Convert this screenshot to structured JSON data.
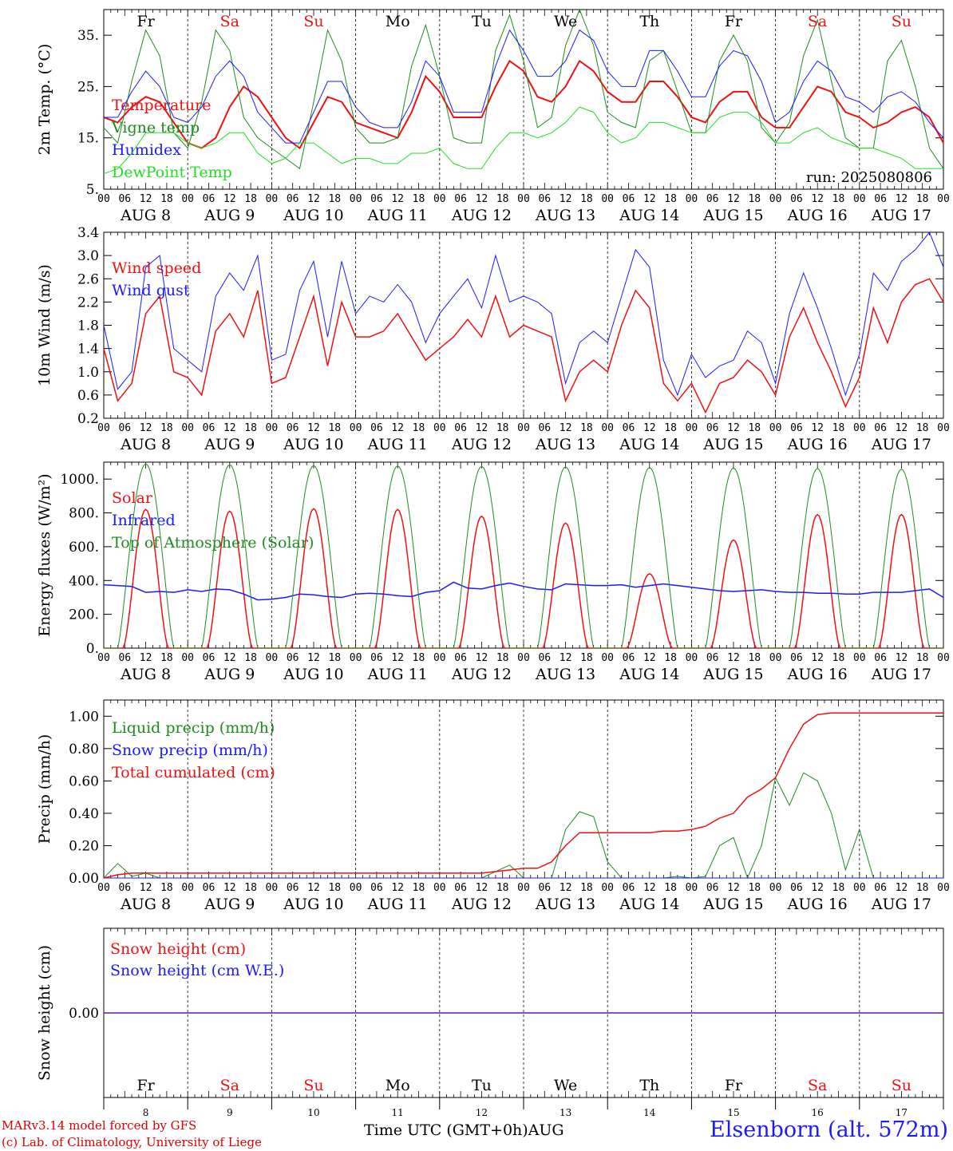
{
  "colors": {
    "red": "#ee1111",
    "green": "#1f8a1f",
    "blue": "#1a1aff",
    "lightgreen": "#22dd22",
    "black": "#000000"
  },
  "days": [
    {
      "abbr": "Fr",
      "date": "AUG  8",
      "num": "8",
      "color": "#000000"
    },
    {
      "abbr": "Sa",
      "date": "AUG  9",
      "num": "9",
      "color": "#ee1111"
    },
    {
      "abbr": "Su",
      "date": "AUG 10",
      "num": "10",
      "color": "#ee1111"
    },
    {
      "abbr": "Mo",
      "date": "AUG 11",
      "num": "11",
      "color": "#000000"
    },
    {
      "abbr": "Tu",
      "date": "AUG 12",
      "num": "12",
      "color": "#000000"
    },
    {
      "abbr": "We",
      "date": "AUG 13",
      "num": "13",
      "color": "#000000"
    },
    {
      "abbr": "Th",
      "date": "AUG 14",
      "num": "14",
      "color": "#000000"
    },
    {
      "abbr": "Fr",
      "date": "AUG 15",
      "num": "15",
      "color": "#000000"
    },
    {
      "abbr": "Sa",
      "date": "AUG 16",
      "num": "16",
      "color": "#ee1111"
    },
    {
      "abbr": "Su",
      "date": "AUG 17",
      "num": "17",
      "color": "#ee1111"
    }
  ],
  "hour_labels": [
    "00",
    "06",
    "12",
    "18"
  ],
  "end_hour_label": "00",
  "footer": {
    "model": "MARv3.14 model forced by GFS",
    "lab": "(c) Lab. of Climatology, University of Liege",
    "axis_title": "Time UTC (GMT+0h)AUG",
    "station": "Elsenborn (alt. 572m)"
  },
  "chart_data": [
    {
      "id": "temp",
      "type": "line",
      "ylabel": "2m Temp. (°C)",
      "ylim": [
        5,
        40
      ],
      "yticks": [
        5,
        15,
        25,
        35
      ],
      "ytick_labels": [
        "5.",
        "15.",
        "25.",
        "35."
      ],
      "note": "run: 2025080806",
      "series": [
        {
          "name": "Temperature",
          "color": "#ee1111",
          "width": 2,
          "values": [
            19,
            18,
            21,
            23,
            22,
            18,
            14,
            13,
            15,
            21,
            25,
            23,
            19,
            15,
            13,
            18,
            23,
            22,
            18,
            17,
            16,
            15,
            20,
            27,
            24,
            19,
            19,
            19,
            25,
            30,
            28,
            23,
            22,
            25,
            30,
            28,
            24,
            22,
            22,
            26,
            26,
            23,
            19,
            18,
            22,
            24,
            24,
            19,
            17,
            17,
            21,
            25,
            24,
            20,
            19,
            17,
            18,
            20,
            21,
            19,
            14
          ]
        },
        {
          "name": "Vigne temp",
          "color": "#1f8a1f",
          "width": 1,
          "values": [
            17,
            14,
            26,
            36,
            31,
            16,
            13,
            22,
            36,
            32,
            19,
            15,
            13,
            11,
            9,
            22,
            36,
            30,
            17,
            14,
            14,
            15,
            29,
            37,
            27,
            15,
            14,
            14,
            32,
            39,
            30,
            17,
            19,
            33,
            40,
            33,
            20,
            18,
            17,
            30,
            32,
            24,
            16,
            16,
            30,
            35,
            30,
            17,
            14,
            18,
            31,
            38,
            26,
            15,
            13,
            13,
            30,
            34,
            25,
            13,
            9
          ]
        },
        {
          "name": "Humidex",
          "color": "#1a1aff",
          "width": 1,
          "values": [
            19,
            19,
            24,
            28,
            25,
            19,
            18,
            21,
            27,
            30,
            27,
            20,
            17,
            14,
            14,
            20,
            26,
            26,
            21,
            18,
            17,
            17,
            22,
            30,
            27,
            20,
            20,
            20,
            29,
            36,
            32,
            27,
            27,
            30,
            36,
            34,
            28,
            25,
            25,
            32,
            32,
            28,
            23,
            23,
            29,
            32,
            31,
            26,
            18,
            20,
            26,
            30,
            28,
            23,
            22,
            20,
            23,
            24,
            22,
            18,
            15
          ]
        },
        {
          "name": "DewPoint Temp",
          "color": "#22dd22",
          "width": 1,
          "values": [
            8,
            9,
            12,
            16,
            16,
            16,
            14,
            13,
            14,
            16,
            16,
            12,
            10,
            11,
            14,
            14,
            12,
            10,
            11,
            11,
            10,
            10,
            12,
            12,
            13,
            10,
            9,
            9,
            13,
            16,
            16,
            15,
            16,
            18,
            21,
            20,
            16,
            14,
            15,
            18,
            18,
            17,
            16,
            16,
            19,
            20,
            20,
            18,
            14,
            14,
            16,
            17,
            15,
            14,
            13,
            13,
            12,
            11,
            9,
            9,
            9
          ]
        }
      ]
    },
    {
      "id": "wind",
      "type": "line",
      "ylabel": "10m Wind (m/s)",
      "ylim": [
        0.2,
        3.4
      ],
      "yticks": [
        0.2,
        0.6,
        1.0,
        1.4,
        1.8,
        2.2,
        2.6,
        3.0,
        3.4
      ],
      "ytick_labels": [
        "0.2",
        "0.6",
        "1.0",
        "1.4",
        "1.8",
        "2.2",
        "2.6",
        "3.0",
        "3.4"
      ],
      "series": [
        {
          "name": "Wind speed",
          "color": "#ee1111",
          "width": 1.5,
          "values": [
            1.4,
            0.5,
            0.8,
            2.0,
            2.3,
            1.0,
            0.9,
            0.6,
            1.7,
            2.0,
            1.6,
            2.4,
            0.8,
            0.9,
            1.6,
            2.3,
            1.1,
            2.2,
            1.6,
            1.6,
            1.7,
            2.0,
            1.6,
            1.2,
            1.4,
            1.6,
            1.9,
            1.6,
            2.3,
            1.6,
            1.8,
            1.7,
            1.6,
            0.5,
            1.0,
            1.2,
            1.0,
            1.8,
            2.4,
            2.1,
            0.8,
            0.5,
            0.8,
            0.3,
            0.8,
            0.9,
            1.2,
            1.0,
            0.6,
            1.6,
            2.1,
            1.5,
            1.0,
            0.4,
            0.9,
            2.1,
            1.5,
            2.2,
            2.5,
            2.6,
            2.2
          ]
        },
        {
          "name": "Wind gust",
          "color": "#1a1aff",
          "width": 1,
          "values": [
            1.8,
            0.7,
            1.0,
            2.8,
            3.0,
            1.4,
            1.2,
            1.0,
            2.3,
            2.7,
            2.4,
            3.0,
            1.2,
            1.3,
            2.4,
            2.9,
            1.6,
            2.9,
            2.0,
            2.3,
            2.2,
            2.5,
            2.2,
            1.5,
            2.0,
            2.3,
            2.6,
            2.1,
            3.0,
            2.2,
            2.3,
            2.2,
            2.0,
            0.8,
            1.5,
            1.7,
            1.5,
            2.3,
            3.1,
            2.8,
            1.2,
            0.6,
            1.3,
            0.9,
            1.1,
            1.2,
            1.7,
            1.5,
            0.8,
            2.0,
            2.7,
            2.1,
            1.4,
            0.6,
            1.3,
            2.7,
            2.4,
            2.9,
            3.1,
            3.4,
            2.8
          ]
        }
      ]
    },
    {
      "id": "flux",
      "type": "line",
      "ylabel": "Energy fluxes (W/m²)",
      "ylim": [
        0,
        1100
      ],
      "yticks": [
        0,
        200,
        400,
        600,
        800,
        1000
      ],
      "ytick_labels": [
        "0.",
        "200.",
        "400.",
        "600.",
        "800.",
        "1000."
      ],
      "series": [
        {
          "name": "Solar",
          "color": "#ee1111",
          "width": 1.5,
          "values": [
            0,
            0,
            0,
            0,
            0,
            0,
            0,
            0,
            0,
            0,
            0,
            0,
            0,
            0,
            0,
            0,
            0,
            0,
            0,
            0,
            0,
            0,
            0,
            0,
            0,
            0,
            0,
            0,
            0,
            0,
            0,
            0,
            0,
            0,
            0,
            0,
            0,
            0,
            0,
            0,
            0,
            0,
            0,
            0,
            0,
            0,
            0,
            0,
            0,
            0,
            0,
            0,
            0,
            0,
            0,
            0,
            0,
            0,
            0,
            0,
            0
          ],
          "peaks": [
            820,
            810,
            825,
            820,
            780,
            740,
            440,
            640,
            790,
            790
          ]
        },
        {
          "name": "Infrared",
          "color": "#1a1aff",
          "width": 1.5,
          "values": [
            375,
            370,
            365,
            330,
            335,
            330,
            345,
            335,
            350,
            345,
            320,
            285,
            290,
            300,
            320,
            315,
            305,
            300,
            320,
            325,
            320,
            310,
            305,
            330,
            340,
            390,
            355,
            350,
            370,
            385,
            365,
            350,
            345,
            380,
            375,
            370,
            370,
            375,
            360,
            370,
            380,
            370,
            360,
            350,
            340,
            335,
            340,
            345,
            335,
            330,
            330,
            325,
            325,
            320,
            320,
            330,
            330,
            330,
            340,
            350,
            300
          ]
        },
        {
          "name": "Top of Atmosphere (Solar)",
          "color": "#1f8a1f",
          "width": 1,
          "peaks": [
            1090,
            1085,
            1080,
            1078,
            1075,
            1072,
            1068,
            1065,
            1062,
            1058
          ]
        }
      ]
    },
    {
      "id": "precip",
      "type": "line",
      "ylabel": "Precip (mm/h)",
      "ylim": [
        0,
        1.1
      ],
      "yticks": [
        0,
        0.2,
        0.4,
        0.6,
        0.8,
        1.0
      ],
      "ytick_labels": [
        "0.00",
        "0.20",
        "0.40",
        "0.60",
        "0.80",
        "1.00"
      ],
      "series": [
        {
          "name": "Liquid precip (mm/h)",
          "color": "#1f8a1f",
          "width": 1,
          "values": [
            0.0,
            0.09,
            0.01,
            0.03,
            0,
            0,
            0,
            0,
            0,
            0,
            0,
            0,
            0,
            0,
            0,
            0,
            0,
            0,
            0,
            0,
            0,
            0,
            0,
            0,
            0,
            0,
            0,
            0,
            0.04,
            0.08,
            0,
            0,
            0,
            0.3,
            0.41,
            0.38,
            0.1,
            0,
            0,
            0,
            0,
            0.01,
            0,
            0.01,
            0.2,
            0.25,
            0,
            0.2,
            0.62,
            0.45,
            0.65,
            0.6,
            0.4,
            0.05,
            0.3,
            0,
            0,
            0,
            0,
            0,
            0
          ]
        },
        {
          "name": "Snow precip (mm/h)",
          "color": "#1a1aff",
          "width": 1,
          "values": [
            0,
            0,
            0,
            0,
            0,
            0,
            0,
            0,
            0,
            0,
            0,
            0,
            0,
            0,
            0,
            0,
            0,
            0,
            0,
            0,
            0,
            0,
            0,
            0,
            0,
            0,
            0,
            0,
            0,
            0,
            0,
            0,
            0,
            0,
            0,
            0,
            0,
            0,
            0,
            0,
            0,
            0,
            0,
            0,
            0,
            0,
            0,
            0,
            0,
            0,
            0,
            0,
            0,
            0,
            0,
            0,
            0,
            0,
            0,
            0,
            0
          ]
        },
        {
          "name": "Total cumulated (cm)",
          "color": "#ee1111",
          "width": 1.5,
          "values": [
            0.0,
            0.02,
            0.03,
            0.03,
            0.03,
            0.03,
            0.03,
            0.03,
            0.03,
            0.03,
            0.03,
            0.03,
            0.03,
            0.03,
            0.03,
            0.03,
            0.03,
            0.03,
            0.03,
            0.03,
            0.03,
            0.03,
            0.03,
            0.03,
            0.03,
            0.03,
            0.03,
            0.03,
            0.04,
            0.05,
            0.06,
            0.06,
            0.1,
            0.2,
            0.28,
            0.28,
            0.28,
            0.28,
            0.28,
            0.28,
            0.29,
            0.29,
            0.3,
            0.32,
            0.37,
            0.4,
            0.5,
            0.55,
            0.62,
            0.8,
            0.95,
            1.01,
            1.02,
            1.02,
            1.02,
            1.02,
            1.02,
            1.02,
            1.02,
            1.02,
            1.02
          ]
        }
      ]
    },
    {
      "id": "snow",
      "type": "line",
      "ylabel": "Snow height (cm)",
      "ylim": [
        -1,
        1
      ],
      "yticks": [
        0
      ],
      "ytick_labels": [
        "0.00"
      ],
      "series": [
        {
          "name": "Snow height (cm)",
          "color": "#ee1111",
          "width": 1.5,
          "values": [
            0,
            0
          ]
        },
        {
          "name": "Snow height (cm W.E.)",
          "color": "#1a1aff",
          "width": 1,
          "values": [
            0,
            0
          ]
        }
      ]
    }
  ]
}
